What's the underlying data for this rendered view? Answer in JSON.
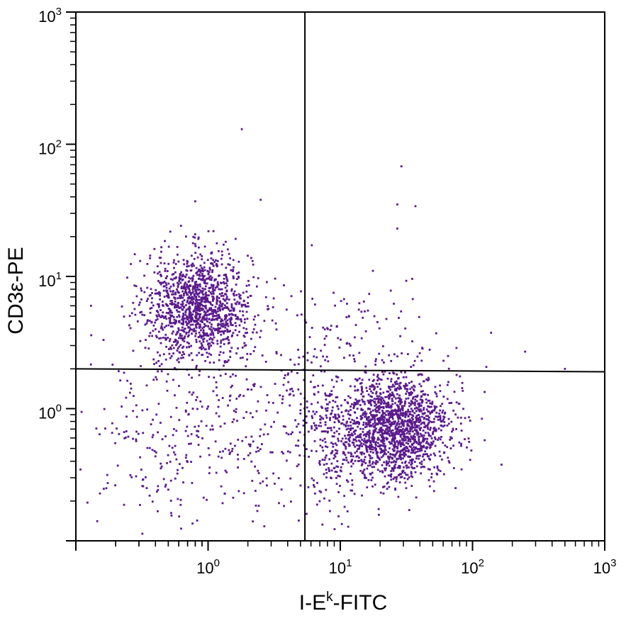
{
  "chart_data": {
    "type": "scatter",
    "xlabel_base": "I-E",
    "xlabel_sup": "k",
    "xlabel_tail": "-FITC",
    "ylabel": "CD3ε-PE",
    "xscale": "log",
    "yscale": "log",
    "xlim": [
      0.1,
      1000
    ],
    "ylim": [
      0.1,
      1000
    ],
    "grid": false,
    "legend": "none",
    "point_color": "#5a1a8c",
    "x_ticks": [
      {
        "base": "10",
        "exp": "0",
        "value": 1
      },
      {
        "base": "10",
        "exp": "1",
        "value": 10
      },
      {
        "base": "10",
        "exp": "2",
        "value": 100
      },
      {
        "base": "10",
        "exp": "3",
        "value": 1000
      }
    ],
    "y_ticks": [
      {
        "base": "10",
        "exp": "0",
        "value": 1
      },
      {
        "base": "10",
        "exp": "1",
        "value": 10
      },
      {
        "base": "10",
        "exp": "2",
        "value": 100
      },
      {
        "base": "10",
        "exp": "3",
        "value": 1000
      }
    ],
    "quadrant_gate": {
      "x_divider": 5.4,
      "y_divider_left": 2.0,
      "y_divider_right": 1.9
    },
    "populations": [
      {
        "center_x": 0.85,
        "center_y": 6.0,
        "spread_x_log": 0.2,
        "spread_y_log": 0.2,
        "count": 1300
      },
      {
        "center_x": 25,
        "center_y": 0.7,
        "spread_x_log": 0.22,
        "spread_y_log": 0.2,
        "count": 1700
      },
      {
        "center_x": 1.0,
        "center_y": 0.7,
        "spread_x_log": 0.45,
        "spread_y_log": 0.35,
        "count": 400
      },
      {
        "center_x": 8,
        "center_y": 0.7,
        "spread_x_log": 0.12,
        "spread_y_log": 0.3,
        "count": 180
      },
      {
        "center_x": 12,
        "center_y": 3.5,
        "spread_x_log": 0.4,
        "spread_y_log": 0.25,
        "count": 120
      }
    ],
    "outliers": [
      {
        "x": 1.8,
        "y": 130
      },
      {
        "x": 29,
        "y": 68
      },
      {
        "x": 27,
        "y": 35
      },
      {
        "x": 37,
        "y": 34
      },
      {
        "x": 27,
        "y": 23
      },
      {
        "x": 0.8,
        "y": 37
      },
      {
        "x": 2.5,
        "y": 38
      },
      {
        "x": 1.1,
        "y": 22
      },
      {
        "x": 250,
        "y": 2.7
      },
      {
        "x": 500,
        "y": 2.0
      },
      {
        "x": 0.13,
        "y": 6.0
      },
      {
        "x": 0.17,
        "y": 0.25
      }
    ]
  }
}
